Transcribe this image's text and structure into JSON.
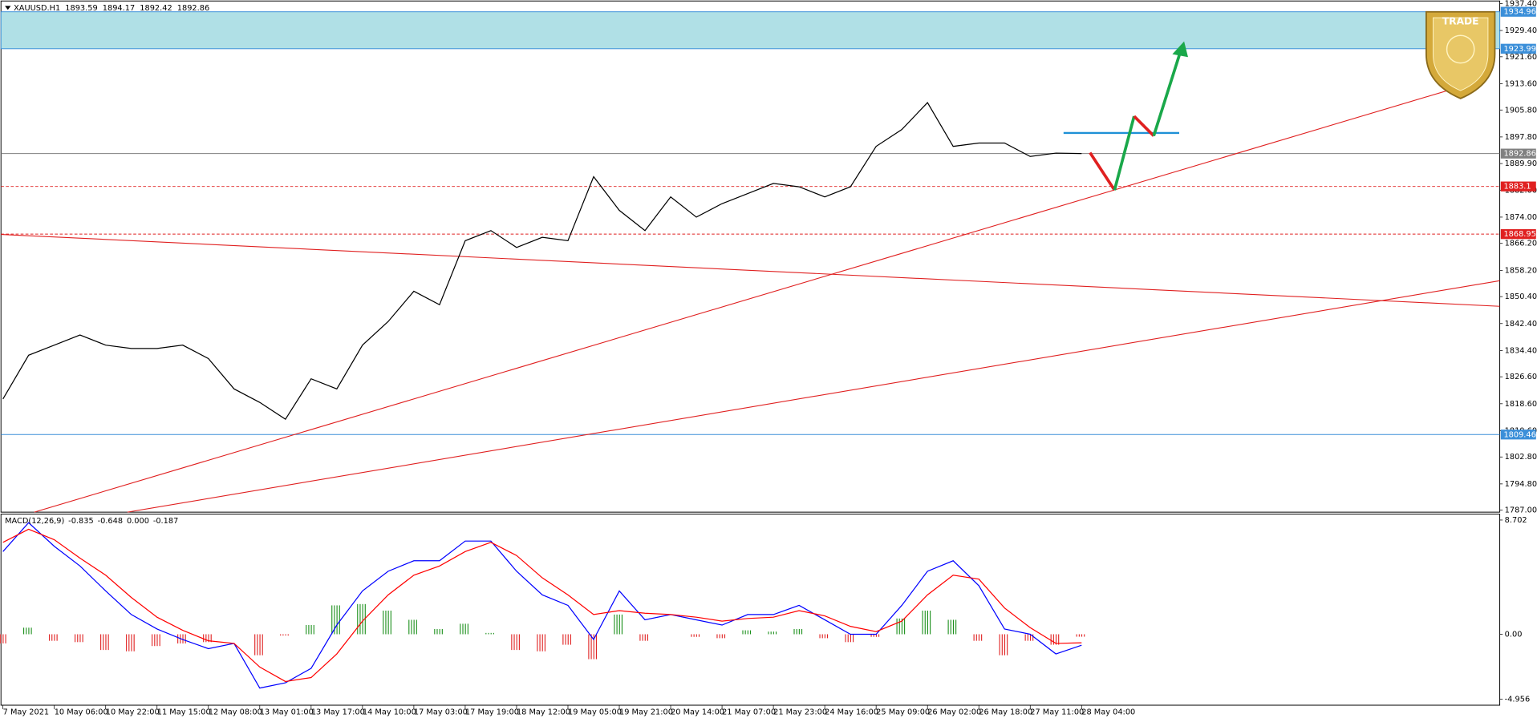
{
  "logo": {
    "text": "TRADE"
  },
  "chart_data": [
    {
      "type": "line",
      "title": "XAUUSD.H1",
      "header_values": [
        1893.59,
        1894.17,
        1892.42,
        1892.86
      ],
      "categories": [
        "7 May 2021",
        null,
        "10 May 06:00",
        null,
        "10 May 22:00",
        null,
        "11 May 15:00",
        null,
        "12 May 08:00",
        null,
        "13 May 01:00",
        null,
        "13 May 17:00",
        null,
        "14 May 10:00",
        null,
        "17 May 03:00",
        null,
        "17 May 19:00",
        null,
        "18 May 12:00",
        null,
        "19 May 05:00",
        null,
        "19 May 21:00",
        null,
        "20 May 14:00",
        null,
        "21 May 07:00",
        null,
        "21 May 23:00",
        null,
        "24 May 16:00",
        null,
        "25 May 09:00",
        null,
        "26 May 02:00",
        null,
        "26 May 18:00",
        null,
        "27 May 11:00",
        null,
        "28 May 04:00"
      ],
      "values": [
        1820,
        1833,
        1836,
        1839,
        1836,
        1835,
        1835,
        1836,
        1832,
        1823,
        1819,
        1814,
        1826,
        1823,
        1836,
        1843,
        1852,
        1848,
        1867,
        1870,
        1865,
        1868,
        1867,
        1886,
        1876,
        1870,
        1880,
        1874,
        1878,
        1881,
        1884,
        1883,
        1880,
        1883,
        1895,
        1900,
        1908,
        1895,
        1896,
        1896,
        1892,
        1893,
        1892.86
      ],
      "color": "#000000",
      "ylim": [
        1787,
        1937.4
      ],
      "yticks": [
        {
          "value": 1937.4,
          "label": "1937.40"
        },
        {
          "value": 1929.4,
          "label": "1929.40"
        },
        {
          "value": 1921.6,
          "label": "1921.60"
        },
        {
          "value": 1913.6,
          "label": "1913.60"
        },
        {
          "value": 1905.8,
          "label": "1905.80"
        },
        {
          "value": 1897.8,
          "label": "1897.80"
        },
        {
          "value": 1889.9,
          "label": "1889.90"
        },
        {
          "value": 1882,
          "label": "1882.00"
        },
        {
          "value": 1874,
          "label": "1874.00"
        },
        {
          "value": 1866.2,
          "label": "1866.20"
        },
        {
          "value": 1858.2,
          "label": "1858.20"
        },
        {
          "value": 1850.4,
          "label": "1850.40"
        },
        {
          "value": 1842.4,
          "label": "1842.40"
        },
        {
          "value": 1834.4,
          "label": "1834.40"
        },
        {
          "value": 1826.6,
          "label": "1826.60"
        },
        {
          "value": 1818.6,
          "label": "1818.60"
        },
        {
          "value": 1810.6,
          "label": "1810.60"
        },
        {
          "value": 1802.8,
          "label": "1802.80"
        },
        {
          "value": 1794.8,
          "label": "1794.80"
        },
        {
          "value": 1787,
          "label": "1787.00"
        }
      ],
      "zone": {
        "from": 1923.99,
        "to": 1934.96,
        "color": "#b0e0e6",
        "edge": "#3b8fd9"
      },
      "levels": [
        {
          "value": 1892.86,
          "color": "#808080",
          "dash": false
        },
        {
          "value": 1883.1,
          "color": "#e02020",
          "dash": true
        },
        {
          "value": 1868.95,
          "color": "#e02020",
          "dash": true
        },
        {
          "value": 1809.46,
          "color": "#3b8fd9",
          "dash": false
        }
      ]
    },
    {
      "type": "macd",
      "title": "MACD(12,26,9)",
      "header_values": [
        -0.835,
        -0.648,
        {
          "value": 0,
          "label": "0.000"
        },
        -0.187
      ],
      "series": [
        {
          "color": "#0000ff",
          "values": [
            6.3,
            8.5,
            6.7,
            5.2,
            3.3,
            1.5,
            0.4,
            -0.4,
            -1.1,
            -0.7,
            -4.1,
            -3.7,
            -2.6,
            0.7,
            3.3,
            4.8,
            5.6,
            5.6,
            7.1,
            7.1,
            4.8,
            3.0,
            2.2,
            -0.4,
            3.3,
            1.1,
            1.5,
            1.1,
            0.7,
            1.5,
            1.5,
            2.2,
            1.1,
            0,
            0,
            2.2,
            4.8,
            5.6,
            3.7,
            0.4,
            0,
            -1.5,
            -0.835
          ]
        },
        {
          "color": "#ff0000",
          "values": [
            7.0,
            8.0,
            7.2,
            5.8,
            4.5,
            2.8,
            1.3,
            0.3,
            -0.5,
            -0.7,
            -2.5,
            -3.6,
            -3.3,
            -1.5,
            1.0,
            3.0,
            4.5,
            5.2,
            6.3,
            7.0,
            6.0,
            4.3,
            3.0,
            1.5,
            1.8,
            1.6,
            1.5,
            1.3,
            1.0,
            1.2,
            1.3,
            1.8,
            1.4,
            0.6,
            0.2,
            1.0,
            3.0,
            4.5,
            4.2,
            2.0,
            0.5,
            -0.7,
            -0.648
          ]
        }
      ],
      "histogram": {
        "up_color": "#1a8f1a",
        "down_color": "#e02020",
        "values": [
          -0.7,
          0.5,
          -0.5,
          -0.6,
          -1.2,
          -1.3,
          -0.9,
          -0.7,
          -0.6,
          0,
          -1.6,
          -0.1,
          0.7,
          2.2,
          2.3,
          1.8,
          1.1,
          0.4,
          0.8,
          0.1,
          -1.2,
          -1.3,
          -0.8,
          -1.9,
          1.5,
          -0.5,
          0,
          -0.2,
          -0.3,
          0.3,
          0.2,
          0.4,
          -0.3,
          -0.6,
          -0.2,
          1.2,
          1.8,
          1.1,
          -0.5,
          -1.6,
          -0.5,
          -0.8,
          -0.187
        ]
      },
      "ylim": [
        -4.956,
        8.702
      ],
      "yticks": [
        8.702,
        {
          "value": 0,
          "label": "0.00"
        },
        -4.956
      ]
    }
  ]
}
